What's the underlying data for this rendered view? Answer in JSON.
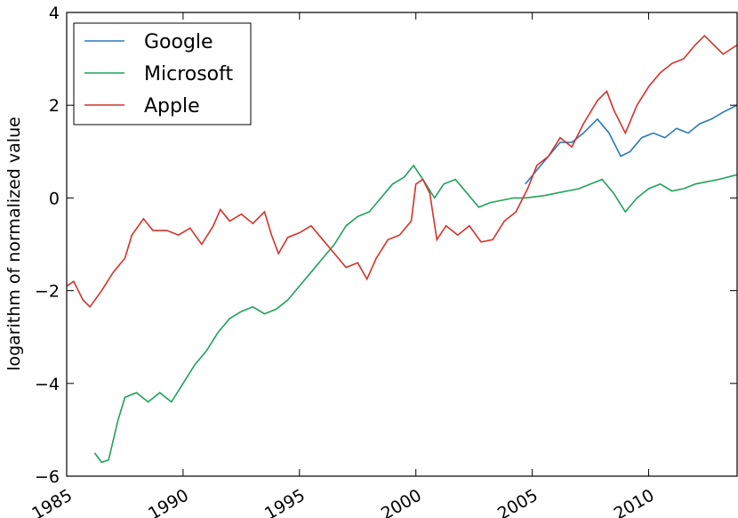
{
  "chart_data": {
    "type": "line",
    "ylabel": "logarithm of normalized value",
    "xlim": [
      1985,
      2013.8
    ],
    "ylim": [
      -6,
      4
    ],
    "xticks": [
      1985,
      1990,
      1995,
      2000,
      2005,
      2010
    ],
    "yticks": [
      {
        "value": -6,
        "label": "−6"
      },
      {
        "value": -4,
        "label": "−4"
      },
      {
        "value": -2,
        "label": "−2"
      },
      0,
      2,
      4
    ],
    "legend": "upper left",
    "series": [
      {
        "name": "Google",
        "color": "#2a7ab9",
        "x": [
          2004.7,
          2005.2,
          2005.7,
          2006.2,
          2006.7,
          2007.2,
          2007.8,
          2008.3,
          2008.8,
          2009.2,
          2009.7,
          2010.2,
          2010.7,
          2011.2,
          2011.7,
          2012.2,
          2012.7,
          2013.2,
          2013.8
        ],
        "values": [
          0.3,
          0.6,
          0.9,
          1.2,
          1.2,
          1.4,
          1.7,
          1.4,
          0.9,
          1.0,
          1.3,
          1.4,
          1.3,
          1.5,
          1.4,
          1.6,
          1.7,
          1.85,
          2.0
        ]
      },
      {
        "name": "Microsoft",
        "color": "#1fa25a",
        "x": [
          1986.2,
          1986.5,
          1986.8,
          1987.2,
          1987.5,
          1988.0,
          1988.5,
          1989.0,
          1989.5,
          1990.0,
          1990.5,
          1991.0,
          1991.5,
          1992.0,
          1992.5,
          1993.0,
          1993.5,
          1994.0,
          1994.5,
          1995.0,
          1995.5,
          1996.0,
          1996.5,
          1997.0,
          1997.5,
          1998.0,
          1998.5,
          1999.0,
          1999.5,
          1999.9,
          2000.3,
          2000.8,
          2001.2,
          2001.7,
          2002.2,
          2002.7,
          2003.2,
          2003.7,
          2004.2,
          2004.7,
          2005.5,
          2006.0,
          2006.5,
          2007.0,
          2007.5,
          2008.0,
          2008.5,
          2009.0,
          2009.5,
          2010.0,
          2010.5,
          2011.0,
          2011.5,
          2012.0,
          2012.5,
          2013.0,
          2013.8
        ],
        "values": [
          -5.5,
          -5.7,
          -5.65,
          -4.8,
          -4.3,
          -4.2,
          -4.4,
          -4.2,
          -4.4,
          -4.0,
          -3.6,
          -3.3,
          -2.9,
          -2.6,
          -2.45,
          -2.35,
          -2.5,
          -2.4,
          -2.2,
          -1.9,
          -1.6,
          -1.3,
          -1.0,
          -0.6,
          -0.4,
          -0.3,
          0.0,
          0.3,
          0.45,
          0.7,
          0.4,
          0.0,
          0.3,
          0.4,
          0.1,
          -0.2,
          -0.1,
          -0.05,
          0.0,
          0.0,
          0.05,
          0.1,
          0.15,
          0.2,
          0.3,
          0.4,
          0.1,
          -0.3,
          0.0,
          0.2,
          0.3,
          0.15,
          0.2,
          0.3,
          0.35,
          0.4,
          0.5
        ]
      },
      {
        "name": "Apple",
        "color": "#d4322a",
        "x": [
          1985.0,
          1985.3,
          1985.7,
          1986.0,
          1986.5,
          1987.0,
          1987.5,
          1987.8,
          1988.3,
          1988.7,
          1989.3,
          1989.8,
          1990.3,
          1990.8,
          1991.3,
          1991.6,
          1992.0,
          1992.5,
          1993.0,
          1993.5,
          1993.8,
          1994.1,
          1994.5,
          1995.0,
          1995.5,
          1996.0,
          1996.5,
          1997.0,
          1997.5,
          1997.9,
          1998.3,
          1998.8,
          1999.3,
          1999.8,
          2000.0,
          2000.3,
          2000.6,
          2000.9,
          2001.3,
          2001.8,
          2002.3,
          2002.8,
          2003.3,
          2003.8,
          2004.3,
          2004.8,
          2005.2,
          2005.7,
          2006.2,
          2006.7,
          2007.2,
          2007.8,
          2008.2,
          2008.5,
          2009.0,
          2009.5,
          2010.0,
          2010.5,
          2011.0,
          2011.5,
          2012.0,
          2012.4,
          2012.8,
          2013.2,
          2013.8
        ],
        "values": [
          -1.9,
          -1.8,
          -2.2,
          -2.35,
          -2.0,
          -1.6,
          -1.3,
          -0.8,
          -0.45,
          -0.7,
          -0.7,
          -0.8,
          -0.65,
          -1.0,
          -0.6,
          -0.25,
          -0.5,
          -0.35,
          -0.55,
          -0.3,
          -0.8,
          -1.2,
          -0.85,
          -0.75,
          -0.6,
          -0.9,
          -1.2,
          -1.5,
          -1.4,
          -1.75,
          -1.3,
          -0.9,
          -0.8,
          -0.5,
          0.3,
          0.4,
          0.1,
          -0.9,
          -0.6,
          -0.8,
          -0.6,
          -0.95,
          -0.9,
          -0.5,
          -0.3,
          0.2,
          0.7,
          0.9,
          1.3,
          1.1,
          1.6,
          2.1,
          2.3,
          1.9,
          1.4,
          2.0,
          2.4,
          2.7,
          2.9,
          3.0,
          3.3,
          3.5,
          3.3,
          3.1,
          3.3
        ]
      }
    ]
  }
}
